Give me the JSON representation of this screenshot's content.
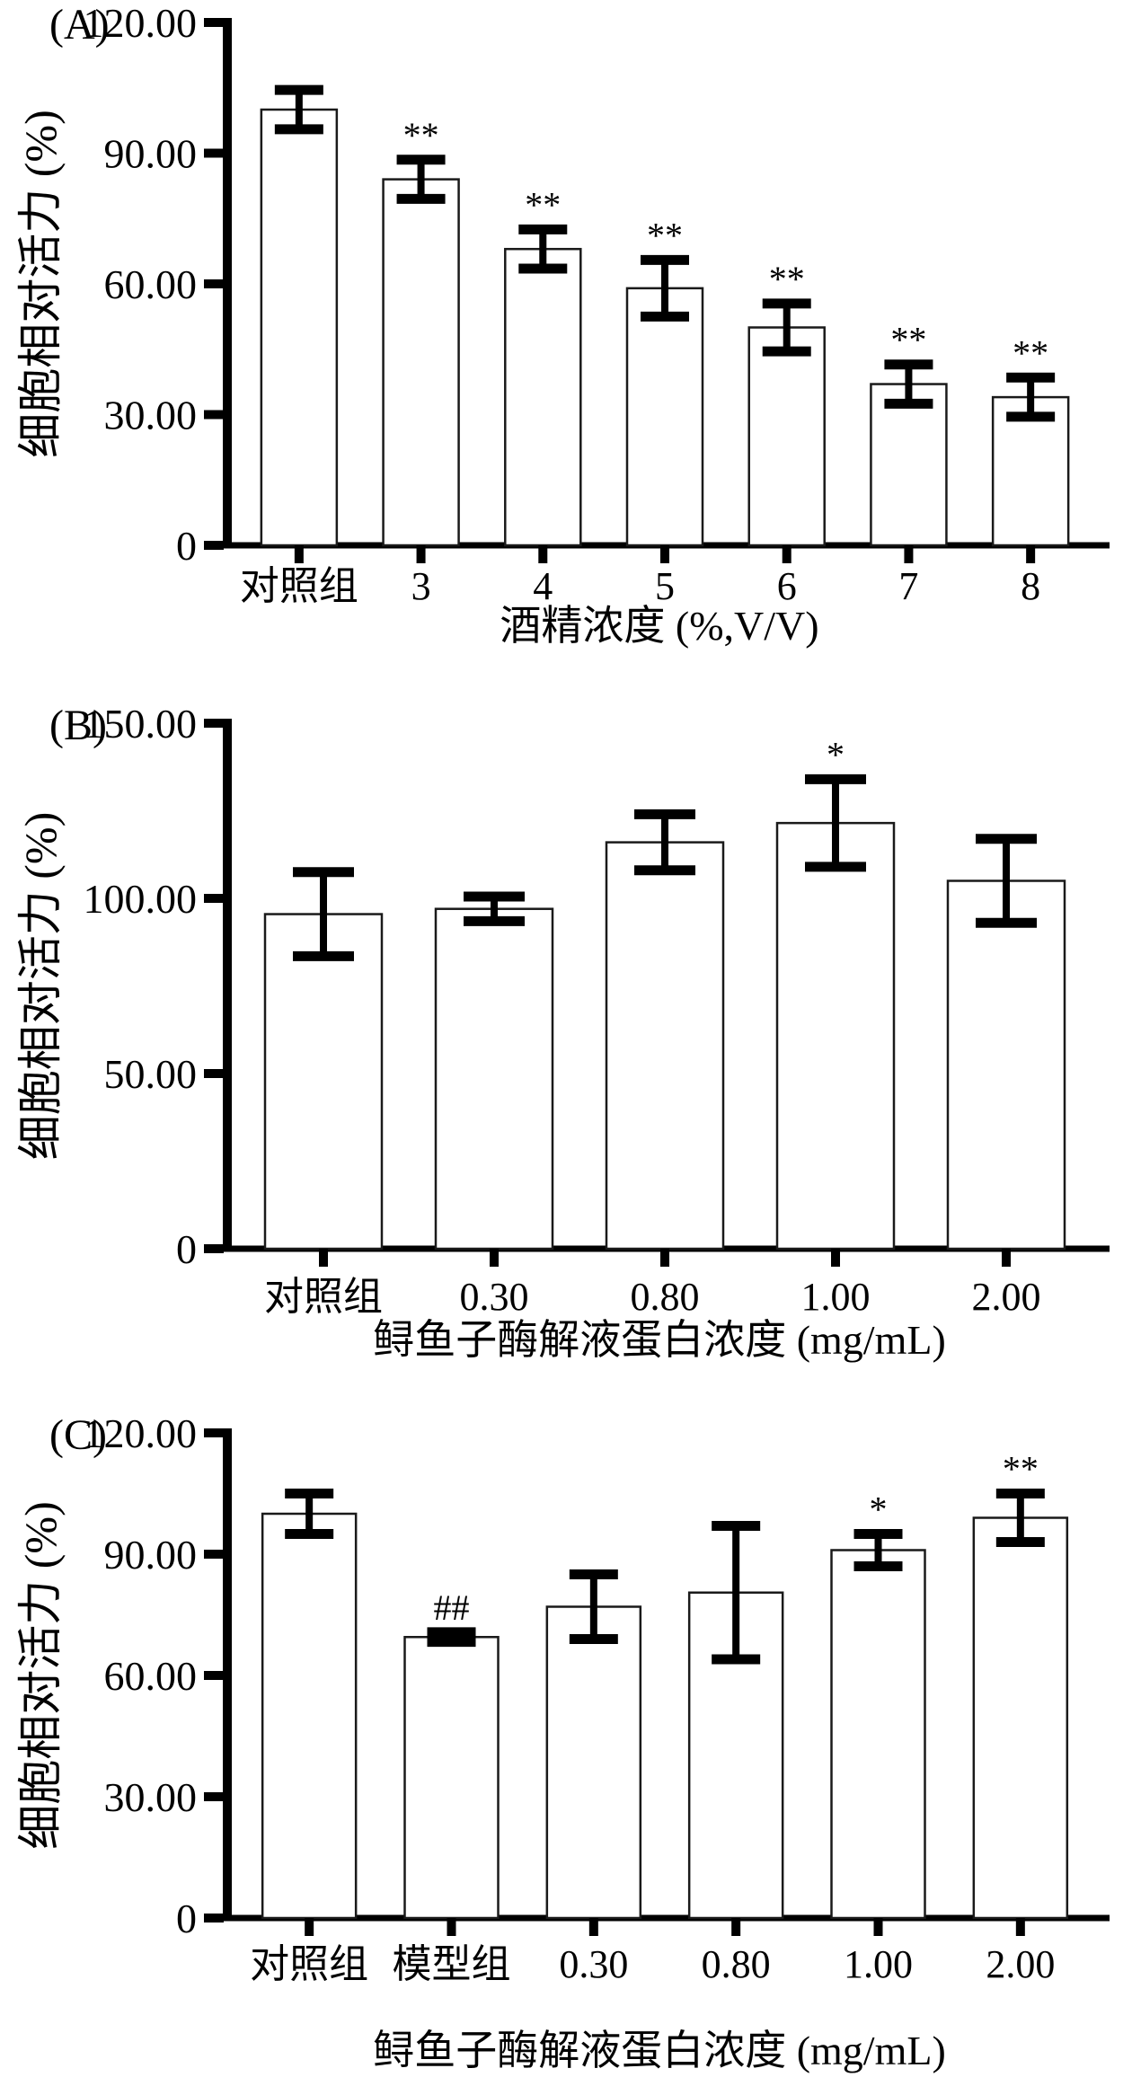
{
  "page": {
    "background": "#ffffff",
    "text_color": "#000000",
    "bar_fill": "#ffffff",
    "bar_stroke": "#1a1a1a",
    "axis_color": "#000000"
  },
  "chart_data": [
    {
      "type": "bar",
      "panel_label": "(A)",
      "title": "",
      "ylabel": "细胞相对活力 (%)",
      "xlabel": "酒精浓度 (%,V/V)",
      "ylim": [
        0,
        120
      ],
      "grid": false,
      "legend": "none",
      "yticks": [
        {
          "value": 120,
          "label": "120.00"
        },
        {
          "value": 90,
          "label": "90.00"
        },
        {
          "value": 60,
          "label": "60.00"
        },
        {
          "value": 30,
          "label": "30.00"
        },
        {
          "value": 0,
          "label": "0"
        }
      ],
      "categories": [
        "对照组",
        "3",
        "4",
        "5",
        "6",
        "7",
        "8"
      ],
      "values": [
        100,
        84,
        68,
        59,
        50,
        37,
        34
      ],
      "errors": [
        4.5,
        4.5,
        4.5,
        6.5,
        5.5,
        4.5,
        4.5
      ],
      "significance": [
        "",
        "**",
        "**",
        "**",
        "**",
        "**",
        "**"
      ]
    },
    {
      "type": "bar",
      "panel_label": "(B)",
      "title": "",
      "ylabel": "细胞相对活力 (%)",
      "xlabel": "鲟鱼子酶解液蛋白浓度 (mg/mL)",
      "ylim": [
        0,
        150
      ],
      "grid": false,
      "legend": "none",
      "yticks": [
        {
          "value": 150,
          "label": "150.00"
        },
        {
          "value": 100,
          "label": "100.00"
        },
        {
          "value": 50,
          "label": "50.00"
        },
        {
          "value": 0,
          "label": "0"
        }
      ],
      "categories": [
        "对照组",
        "0.30",
        "0.80",
        "1.00",
        "2.00"
      ],
      "values": [
        95.5,
        97,
        116,
        121.5,
        105
      ],
      "errors": [
        12,
        3.5,
        8,
        12.5,
        12
      ],
      "significance": [
        "",
        "",
        "",
        "*",
        ""
      ]
    },
    {
      "type": "bar",
      "panel_label": "(C)",
      "title": "",
      "ylabel": "细胞相对活力 (%)",
      "xlabel": "鲟鱼子酶解液蛋白浓度 (mg/mL)",
      "ylim": [
        0,
        120
      ],
      "grid": false,
      "legend": "none",
      "yticks": [
        {
          "value": 120,
          "label": "120.00"
        },
        {
          "value": 90,
          "label": "90.00"
        },
        {
          "value": 60,
          "label": "60.00"
        },
        {
          "value": 30,
          "label": "30.00"
        },
        {
          "value": 0,
          "label": "0"
        }
      ],
      "categories": [
        "对照组",
        "模型组",
        "0.30",
        "0.80",
        "1.00",
        "2.00"
      ],
      "values": [
        100,
        69.5,
        77,
        80.5,
        91,
        99
      ],
      "errors": [
        5,
        1.2,
        8,
        16.5,
        4,
        6
      ],
      "significance": [
        "",
        "##",
        "",
        "",
        "*",
        "**"
      ]
    }
  ]
}
